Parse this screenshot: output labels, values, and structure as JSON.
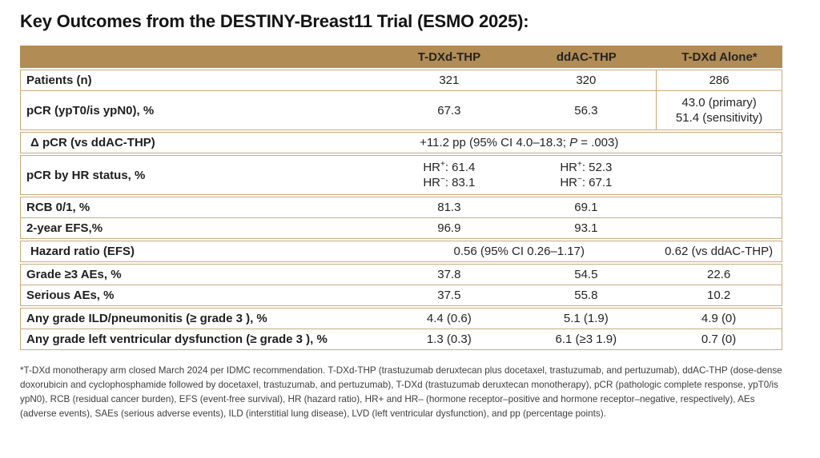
{
  "title": "Key Outcomes from the DESTINY-Breast11 Trial (ESMO 2025):",
  "colors": {
    "header_bg": "#b28c55",
    "header_text": "#ffffff",
    "table_border": "#cda97c",
    "body_text": "#222222",
    "footnote_text": "#3d3d3d"
  },
  "table": {
    "header": [
      "T-DXd-THP",
      "ddAC-THP",
      "T-DXd Alone*"
    ],
    "rows": [
      {
        "label": "Patients (n)",
        "c1": "321",
        "c2": "320",
        "c3": "286"
      },
      {
        "label": "pCR (ypT0/is ypN0), %",
        "c1": "67.3",
        "c2": "56.3",
        "c3_line1": "43.0 (primary)",
        "c3_line2": "51.4 (sensitivity)"
      },
      {
        "label": "Δ pCR (vs ddAC-THP)",
        "span_pre": "+11.2 pp (95% CI 4.0–18.3; ",
        "span_italic": "P",
        "span_post": " = .003)"
      },
      {
        "label": "pCR by HR status, %",
        "c1_pos_base": "HR",
        "c1_pos_sup": "+",
        "c1_pos_val": ": 61.4",
        "c1_neg_base": "HR",
        "c1_neg_sup": "−",
        "c1_neg_val": ": 83.1",
        "c2_pos_base": "HR",
        "c2_pos_sup": "+",
        "c2_pos_val": ": 52.3",
        "c2_neg_base": "HR",
        "c2_neg_sup": "−",
        "c2_neg_val": ": 67.1"
      },
      {
        "label": "RCB 0/1, %",
        "c1": "81.3",
        "c2": "69.1",
        "c3": ""
      },
      {
        "label": "2-year EFS,%",
        "c1": "96.9",
        "c2": "93.1",
        "c3": ""
      },
      {
        "label": "Hazard ratio (EFS)",
        "span": "0.56 (95% CI 0.26–1.17)",
        "c3": "0.62 (vs ddAC-THP)"
      },
      {
        "label": "Grade ≥3 AEs, %",
        "c1": "37.8",
        "c2": "54.5",
        "c3": "22.6"
      },
      {
        "label": "Serious AEs, %",
        "c1": "37.5",
        "c2": "55.8",
        "c3": "10.2"
      },
      {
        "label": "Any grade ILD/pneumonitis (≥ grade 3 ), %",
        "c1": "4.4 (0.6)",
        "c2": "5.1 (1.9)",
        "c3": "4.9 (0)"
      },
      {
        "label": "Any grade left ventricular dysfunction (≥ grade 3 ), %",
        "c1": "1.3 (0.3)",
        "c2": "6.1 (≥3 1.9)",
        "c3": "0.7 (0)"
      }
    ]
  },
  "footnote": "*T-DXd monotherapy arm closed March 2024 per IDMC recommendation. T-DXd-THP (trastuzumab deruxtecan plus docetaxel, trastuzumab, and pertuzumab), ddAC-THP (dose-dense doxorubicin and cyclophosphamide followed by docetaxel, trastuzumab, and pertuzumab), T-DXd (trastuzumab deruxtecan monotherapy), pCR (pathologic complete response, ypT0/is ypN0), RCB (residual cancer burden), EFS (event-free survival), HR (hazard ratio), HR+ and HR– (hormone receptor–positive and hormone receptor–negative, respectively), AEs (adverse events), SAEs (serious adverse events), ILD (interstitial lung disease), LVD (left ventricular dysfunction), and pp (percentage points)."
}
